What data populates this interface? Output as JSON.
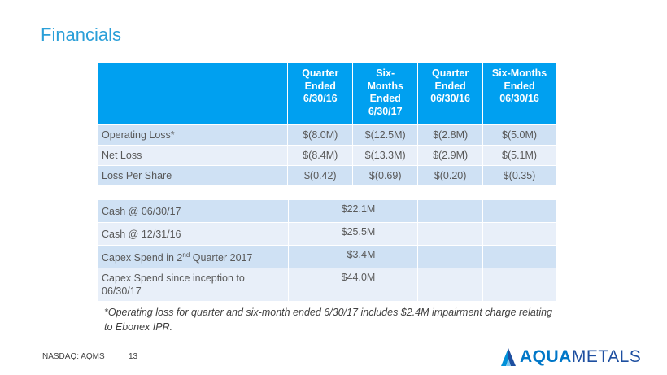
{
  "title": "Financials",
  "table1": {
    "headers": [
      "",
      "Quarter\nEnded\n6/30/16",
      "Six-\nMonths\nEnded\n6/30/17",
      "Quarter\nEnded\n06/30/16",
      "Six-Months\nEnded\n06/30/16"
    ],
    "rows": [
      {
        "label": "Operating Loss*",
        "values": [
          "$(8.0M)",
          "$(12.5M)",
          "$(2.8M)",
          "$(5.0M)"
        ]
      },
      {
        "label": "Net Loss",
        "values": [
          "$(8.4M)",
          "$(13.3M)",
          "$(2.9M)",
          "$(5.1M)"
        ]
      },
      {
        "label": "Loss Per Share",
        "values": [
          "$(0.42)",
          "$(0.69)",
          "$(0.20)",
          "$(0.35)"
        ]
      }
    ]
  },
  "table2": {
    "rows": [
      {
        "label": "Cash @ 06/30/17",
        "value": "$22.1M"
      },
      {
        "label": "Cash @ 12/31/16",
        "value": "$25.5M"
      },
      {
        "label_pre": "Capex Spend in 2",
        "label_sup": "nd",
        "label_post": " Quarter 2017",
        "value": "$3.4M"
      },
      {
        "label": "Capex Spend since inception to 06/30/17",
        "value": "$44.0M"
      }
    ]
  },
  "footnote": "*Operating loss for quarter and six-month ended 6/30/17 includes $2.4M impairment charge relating to Ebonex IPR.",
  "footer": {
    "ticker": "NASDAQ: AQMS",
    "page": "13"
  },
  "logo": {
    "aqua": "AQUA",
    "metals": "METALS"
  },
  "colors": {
    "title": "#2a9fd8",
    "header_bg": "#00a0f0",
    "row_dark": "#cfe1f4",
    "row_light": "#e8eff9"
  }
}
